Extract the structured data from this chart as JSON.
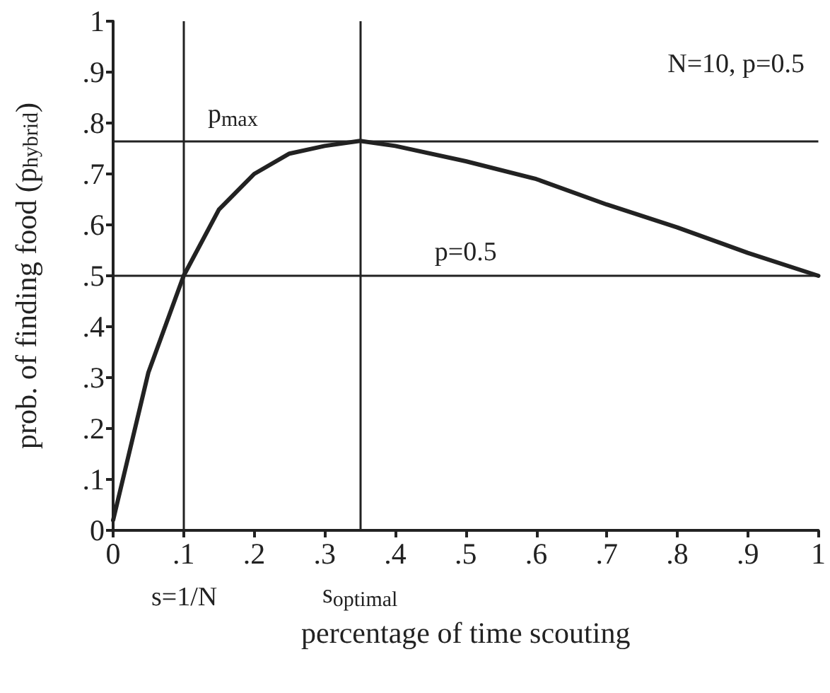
{
  "chart_data": {
    "type": "line",
    "xlabel": "percentage of time scouting",
    "ylabel": "prob. of finding food (p$_{hybrid}$)",
    "annotations": [
      "N=10, p=0.5",
      "s=1/N"
    ],
    "x": [
      0,
      0.05,
      0.1,
      0.15,
      0.2,
      0.25,
      0.3,
      0.35,
      0.4,
      0.5,
      0.6,
      0.7,
      0.8,
      0.9,
      1
    ],
    "series": [
      {
        "color": "#222222",
        "values": [
          0.02,
          0.31,
          0.5,
          0.63,
          0.7,
          0.74,
          0.755,
          0.765,
          0.755,
          0.725,
          0.69,
          0.64,
          0.595,
          0.545,
          0.5
        ]
      }
    ],
    "xlim": [
      0,
      1
    ],
    "ylim": [
      0,
      1
    ],
    "xticks": [
      0,
      {
        "value": 0.1,
        "label": ".1"
      },
      {
        "value": 0.2,
        "label": ".2"
      },
      {
        "value": 0.3,
        "label": ".3"
      },
      {
        "value": 0.4,
        "label": ".4"
      },
      {
        "value": 0.5,
        "label": ".5"
      },
      {
        "value": 0.6,
        "label": ".6"
      },
      {
        "value": 0.7,
        "label": ".7"
      },
      {
        "value": 0.8,
        "label": ".8"
      },
      {
        "value": 0.9,
        "label": ".9"
      },
      1
    ],
    "yticks": [
      0,
      {
        "value": 0.1,
        "label": ".1"
      },
      {
        "value": 0.2,
        "label": ".2"
      },
      {
        "value": 0.3,
        "label": ".3"
      },
      {
        "value": 0.4,
        "label": ".4"
      },
      {
        "value": 0.5,
        "label": ".5"
      },
      {
        "value": 0.6,
        "label": ".6"
      },
      {
        "value": 0.7,
        "label": ".7"
      },
      {
        "value": 0.8,
        "label": ".8"
      },
      {
        "value": 0.9,
        "label": ".9"
      },
      1
    ],
    "ref_lines": [
      {
        "axis": "y",
        "value": 0.765,
        "label": "p$_{max}$",
        "color": "#222222"
      },
      {
        "axis": "y",
        "value": 0.5,
        "label": "p=0.5",
        "color": "#222222"
      },
      {
        "axis": "x",
        "value": 0.1,
        "color": "#222222"
      },
      {
        "axis": "x",
        "value": 0.35,
        "label": "s$_{optimal}$",
        "color": "#222222"
      }
    ],
    "grid": false,
    "marker": "none",
    "line_style": "solid"
  }
}
